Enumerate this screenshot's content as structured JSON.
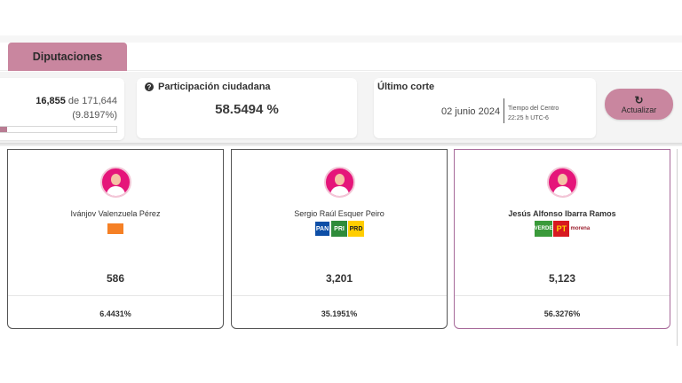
{
  "tabs": [
    {
      "label": "Diputaciones",
      "active": true
    }
  ],
  "actas": {
    "count": "16,855",
    "connector": "de",
    "total": "171,644",
    "percent": "(9.8197%)",
    "progress": 0.098197
  },
  "participacion": {
    "title": "Participación ciudadana",
    "value": "58.5494 %"
  },
  "corte": {
    "title": "Último corte",
    "date": "02 junio 2024",
    "tz_line1": "Tiempo del Centro",
    "tz_line2": "22:25 h UTC-6"
  },
  "refresh": {
    "label": "Actualizar",
    "icon": "refresh-icon"
  },
  "candidates": [
    {
      "name": "Ivánjov Valenzuela Pérez",
      "votes": "586",
      "percent": "6.4431%",
      "parties": [
        "MC"
      ],
      "winner": false
    },
    {
      "name": "Sergio Raúl Esquer Peiro",
      "votes": "3,201",
      "percent": "35.1951%",
      "parties": [
        "PAN",
        "PRI",
        "PRD"
      ],
      "winner": false
    },
    {
      "name": "Jesús Alfonso Ibarra Ramos",
      "votes": "5,123",
      "percent": "56.3276%",
      "parties": [
        "VERDE",
        "PT",
        "morena"
      ],
      "winner": true
    }
  ],
  "colors": {
    "accent": "#c9869f",
    "avatar": "#e5157a",
    "winner_border": "#a76a9a"
  }
}
